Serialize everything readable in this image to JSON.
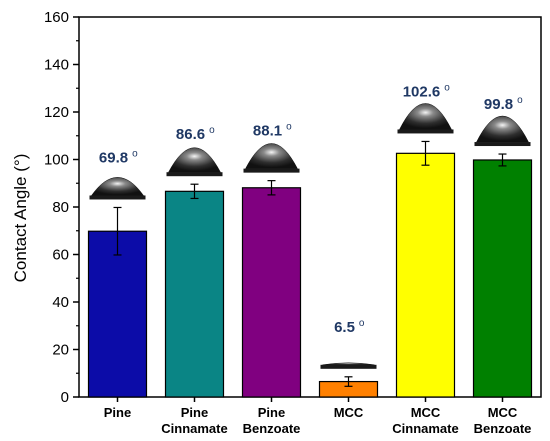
{
  "chart_data": {
    "type": "bar",
    "categories": [
      [
        "Pine"
      ],
      [
        "Pine",
        "Cinnamate"
      ],
      [
        "Pine",
        "Benzoate"
      ],
      [
        "MCC"
      ],
      [
        "MCC",
        "Cinnamate"
      ],
      [
        "MCC",
        "Benzoate"
      ]
    ],
    "values": [
      69.8,
      86.6,
      88.1,
      6.5,
      102.6,
      99.8
    ],
    "errors": [
      10.0,
      3.0,
      3.0,
      2.0,
      5.0,
      2.5
    ],
    "data_labels": [
      "69.8",
      "86.6",
      "88.1",
      "6.5",
      "102.6",
      "99.8"
    ],
    "data_label_unit": "o",
    "colors": [
      "#0c0ca8",
      "#0a8585",
      "#800080",
      "#ff8000",
      "#ffff00",
      "#008000"
    ],
    "droplet_images": [
      true,
      true,
      true,
      true,
      true,
      true
    ],
    "ylabel": "Contact Angle (°)",
    "ylim": [
      0,
      160
    ],
    "yticks": [
      0,
      20,
      40,
      60,
      80,
      100,
      120,
      140,
      160
    ],
    "grid": false,
    "legend": false
  }
}
